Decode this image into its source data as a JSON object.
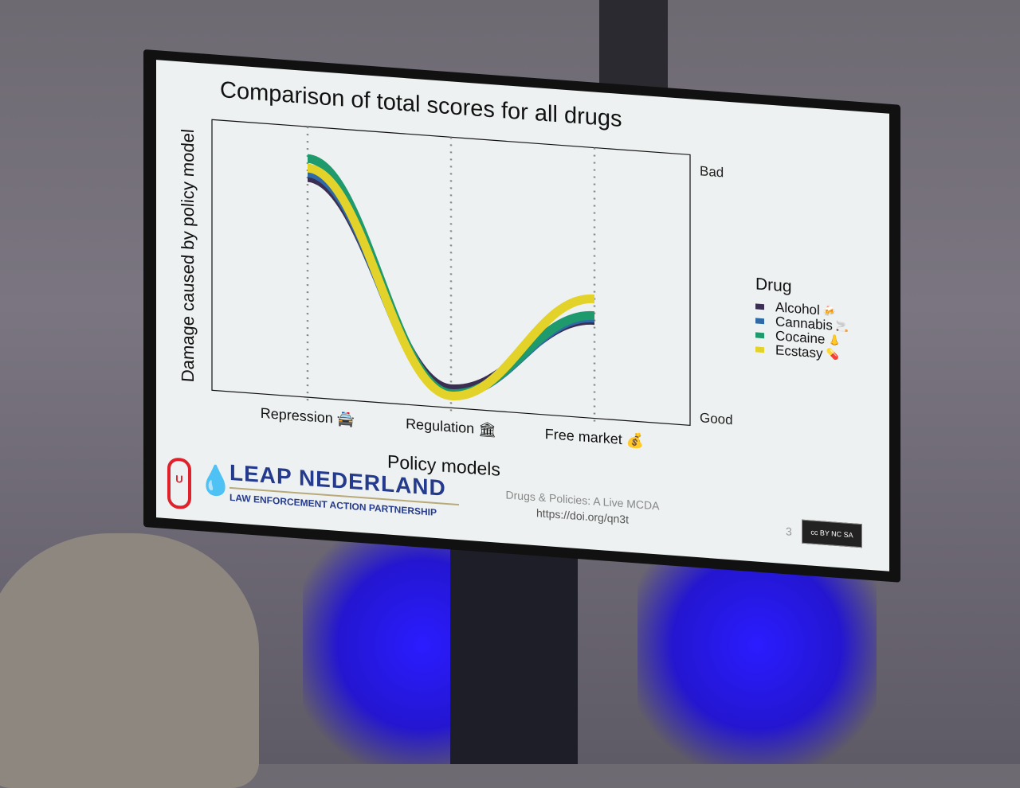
{
  "slide": {
    "page_number": "3",
    "footer_title": "Drugs & Policies: A Live MCDA",
    "footer_url": "https://doi.org/qn3t",
    "logo_text": "LEAP NEDERLAND",
    "logo_subtext": "LAW ENFORCEMENT ACTION PARTNERSHIP",
    "license_badge": "cc BY NC SA"
  },
  "chart_data": {
    "type": "line",
    "title": "Comparison of total scores for all drugs",
    "xlabel": "Policy models",
    "ylabel": "Damage caused by policy model",
    "categories": [
      "Repression 🚔",
      "Regulation 🏛",
      "Free market 💰"
    ],
    "y_labels": {
      "top": "Bad",
      "bottom": "Good"
    },
    "ylim": [
      0,
      1
    ],
    "grid": "vertical dotted lines at each policy model",
    "legend": {
      "title": "Drug",
      "position": "right"
    },
    "series": [
      {
        "name": "Alcohol",
        "icon": "🍻",
        "color": "#3a2f52",
        "values": [
          0.87,
          0.03,
          0.36
        ]
      },
      {
        "name": "Cannabis",
        "icon": "🚬",
        "color": "#2f6aa6",
        "values": [
          0.89,
          0.01,
          0.37
        ]
      },
      {
        "name": "Cocaine",
        "icon": "👃",
        "color": "#1f9a6c",
        "values": [
          0.95,
          0.01,
          0.38
        ]
      },
      {
        "name": "Ecstasy",
        "icon": "💊",
        "color": "#e3d22a",
        "values": [
          0.91,
          0.0,
          0.45
        ]
      }
    ]
  }
}
